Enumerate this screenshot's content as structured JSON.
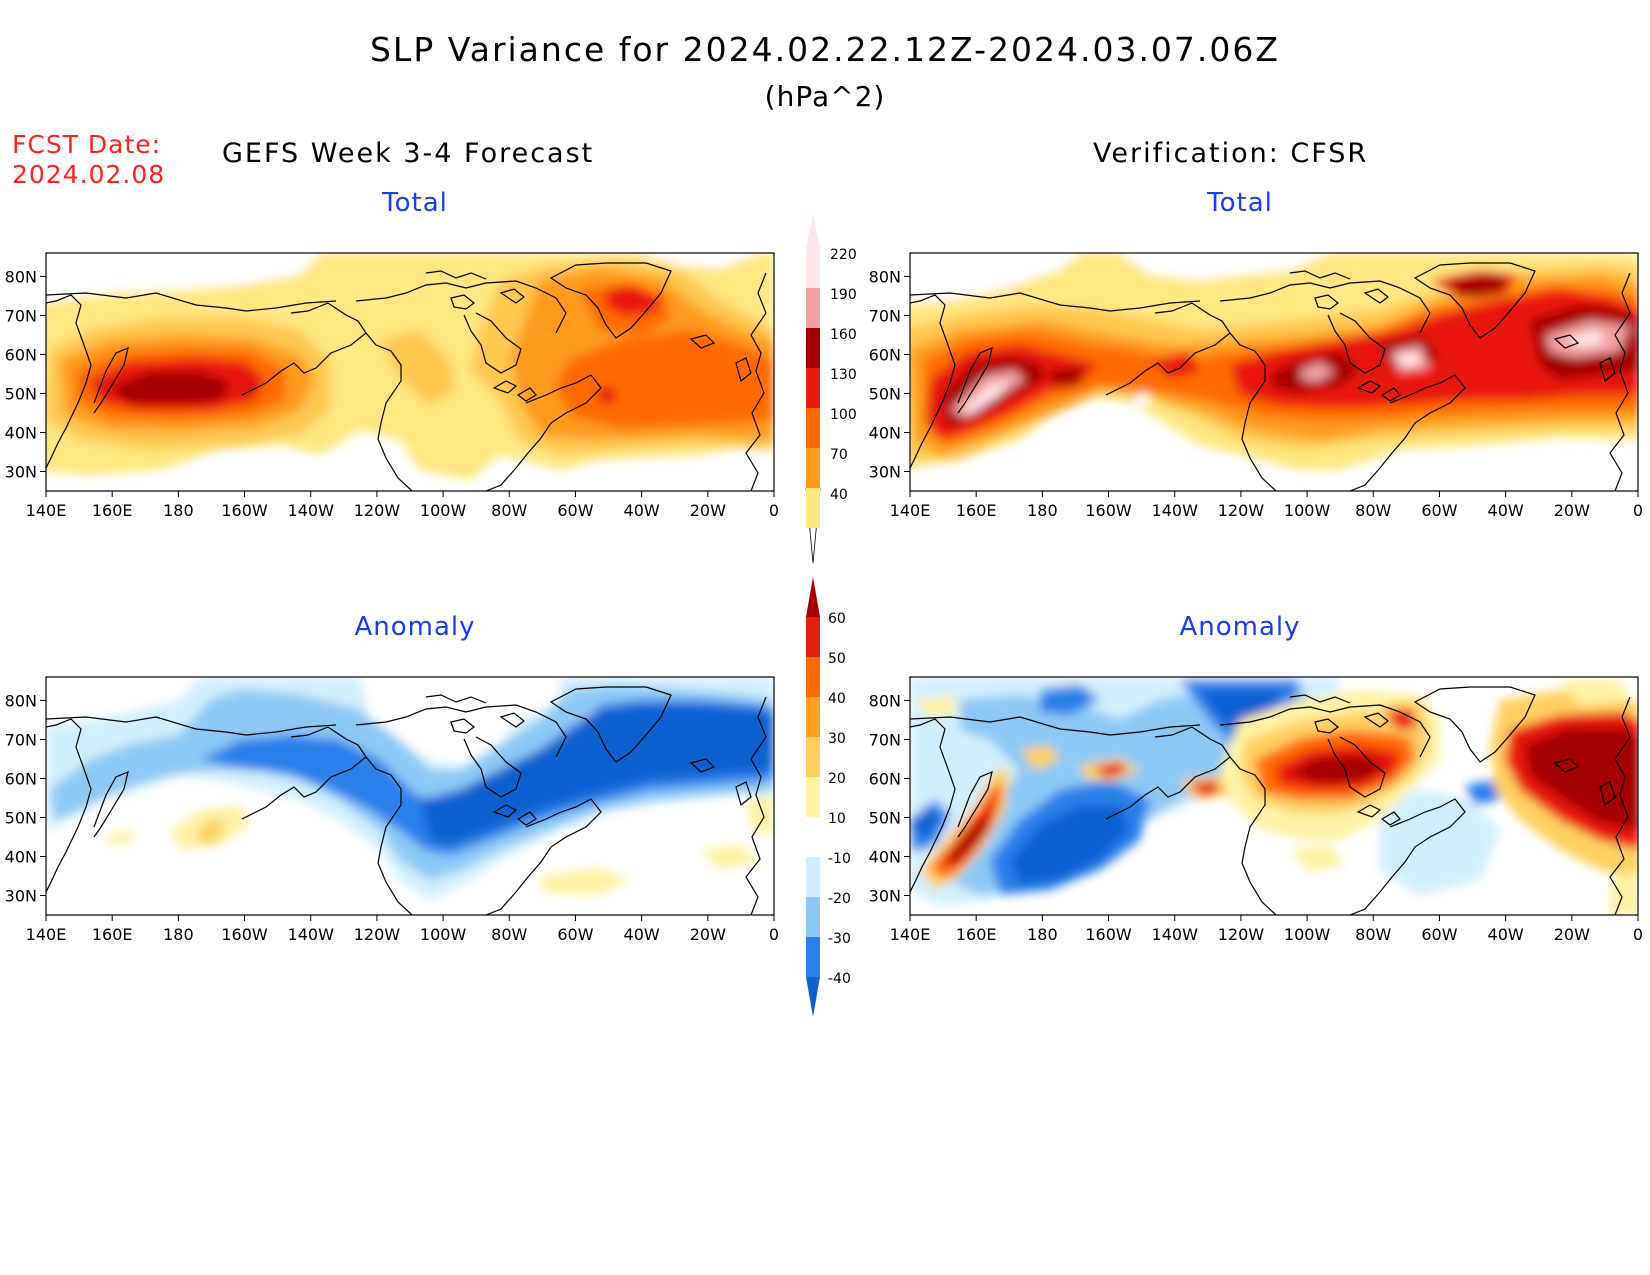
{
  "title": "SLP Variance for 2024.02.22.12Z-2024.03.07.06Z",
  "units": "(hPa^2)",
  "fcst_label": "FCST Date:",
  "fcst_date": "2024.02.08",
  "left_column_title": "GEFS Week 3-4 Forecast",
  "right_column_title": "Verification: CFSR",
  "panels": {
    "total_label": "Total",
    "anomaly_label": "Anomaly"
  },
  "x_ticks": [
    "140E",
    "160E",
    "180",
    "160W",
    "140W",
    "120W",
    "100W",
    "80W",
    "60W",
    "40W",
    "20W",
    "0"
  ],
  "y_ticks": [
    "30N",
    "40N",
    "50N",
    "60N",
    "70N",
    "80N"
  ],
  "total_colorbar": {
    "levels": [
      "40",
      "70",
      "100",
      "130",
      "160",
      "190",
      "220"
    ],
    "colors": [
      "#ffe680",
      "#ffc850",
      "#ff9a1c",
      "#ff6a00",
      "#e8190f",
      "#a50000",
      "#f2a0a0",
      "#ffe6ea"
    ]
  },
  "anomaly_colorbar": {
    "levels": [
      "-40",
      "-30",
      "-20",
      "-10",
      "10",
      "20",
      "30",
      "40",
      "50",
      "60"
    ],
    "colors": [
      "#1060d0",
      "#2a80ea",
      "#8cc8f4",
      "#cfeefc",
      "#ffffff",
      "#fff2a6",
      "#ffd060",
      "#ffa020",
      "#ff6a00",
      "#e02010",
      "#a80000"
    ]
  }
}
